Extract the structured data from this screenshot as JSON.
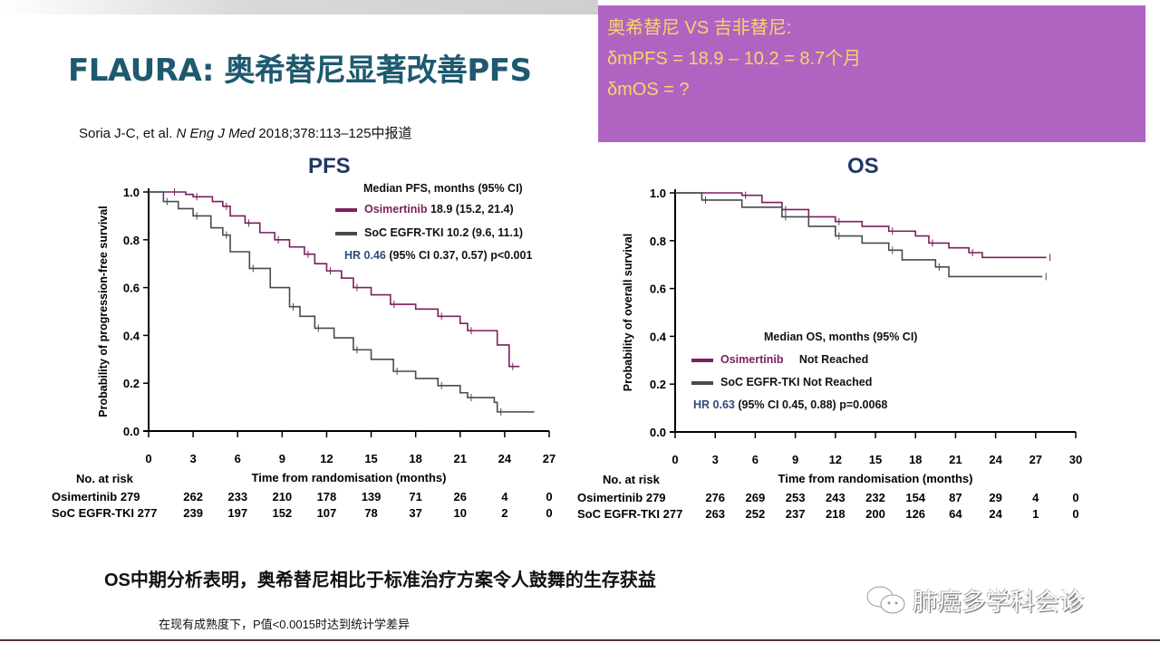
{
  "header": {
    "title": "FLAURA: 奥希替尼显著改善PFS",
    "citation_pre": "Soria J-C, et al. ",
    "citation_journal": "N Eng J Med",
    "citation_post": " 2018;378:113–125中报道"
  },
  "callout": {
    "line1": "奥希替尼 VS 吉非替尼:",
    "line2": "δmPFS = 18.9 – 10.2 = 8.7个月",
    "line3": "δmOS = ?"
  },
  "footer": {
    "statement": "OS中期分析表明，奥希替尼相比于标准治疗方案令人鼓舞的生存获益",
    "note": "在现有成熟度下，P值<0.0015时达到统计学差异",
    "logo_text": "肺癌多学科会诊"
  },
  "colors": {
    "osimertinib": "#7b1f5e",
    "soc": "#4a4a4a",
    "title": "#1d5a70",
    "callout_bg": "#b064c2"
  },
  "chart_data": [
    {
      "type": "line",
      "title": "PFS",
      "ylabel": "Probability of progression-free survival",
      "xlabel": "Time from randomisation (months)",
      "xlim": [
        0,
        27
      ],
      "ylim": [
        0,
        1
      ],
      "xticks": [
        "0",
        "3",
        "6",
        "9",
        "12",
        "15",
        "18",
        "21",
        "24",
        "27"
      ],
      "yticks": [
        "0.0",
        "0.2",
        "0.4",
        "0.6",
        "0.8",
        "1.0"
      ],
      "legend": {
        "heading": "Median PFS, months (95% CI)",
        "osi_name": "Osimertinib",
        "osi_value": " 18.9 (15.2, 21.4)",
        "soc_name": "SoC EGFR-TKI",
        "soc_value": " 10.2 (9.6, 11.1)",
        "hr_label": "HR 0.46",
        "hr_rest": " (95% CI 0.37, 0.57) p<0.001"
      },
      "series": [
        {
          "name": "Osimertinib",
          "points": [
            [
              0,
              1
            ],
            [
              1.5,
              1
            ],
            [
              2.5,
              0.99
            ],
            [
              3,
              0.98
            ],
            [
              4.3,
              0.96
            ],
            [
              5,
              0.94
            ],
            [
              5.5,
              0.9
            ],
            [
              6.5,
              0.87
            ],
            [
              7.5,
              0.83
            ],
            [
              8.5,
              0.8
            ],
            [
              9.5,
              0.77
            ],
            [
              10.5,
              0.74
            ],
            [
              11.2,
              0.7
            ],
            [
              12,
              0.67
            ],
            [
              13,
              0.64
            ],
            [
              13.8,
              0.6
            ],
            [
              15,
              0.57
            ],
            [
              16.3,
              0.53
            ],
            [
              18,
              0.51
            ],
            [
              19.5,
              0.48
            ],
            [
              21,
              0.45
            ],
            [
              21.5,
              0.42
            ],
            [
              23.5,
              0.36
            ],
            [
              24.3,
              0.27
            ],
            [
              25,
              0.27
            ]
          ]
        },
        {
          "name": "SoC EGFR-TKI",
          "points": [
            [
              0,
              1
            ],
            [
              1,
              0.96
            ],
            [
              2,
              0.93
            ],
            [
              3,
              0.9
            ],
            [
              4.2,
              0.85
            ],
            [
              5,
              0.82
            ],
            [
              5.5,
              0.75
            ],
            [
              6.8,
              0.68
            ],
            [
              8.2,
              0.6
            ],
            [
              9.5,
              0.52
            ],
            [
              10.2,
              0.48
            ],
            [
              11.2,
              0.43
            ],
            [
              12.5,
              0.39
            ],
            [
              13.8,
              0.34
            ],
            [
              15,
              0.3
            ],
            [
              16.5,
              0.25
            ],
            [
              18,
              0.22
            ],
            [
              19.5,
              0.19
            ],
            [
              21,
              0.16
            ],
            [
              21.5,
              0.14
            ],
            [
              23.3,
              0.12
            ],
            [
              23.5,
              0.08
            ],
            [
              26,
              0.08
            ]
          ]
        }
      ],
      "risk": {
        "heading": "No. at risk",
        "rows": [
          {
            "label": "Osimertinib 279",
            "values": [
              "262",
              "233",
              "210",
              "178",
              "139",
              "71",
              "26",
              "4",
              "0"
            ]
          },
          {
            "label": "SoC EGFR-TKI 277",
            "values": [
              "239",
              "197",
              "152",
              "107",
              "78",
              "37",
              "10",
              "2",
              "0"
            ]
          }
        ]
      }
    },
    {
      "type": "line",
      "title": "OS",
      "ylabel": "Probability of overall survival",
      "xlabel": "Time from randomisation (months)",
      "xlim": [
        0,
        30
      ],
      "ylim": [
        0,
        1
      ],
      "xticks": [
        "0",
        "3",
        "6",
        "9",
        "12",
        "15",
        "18",
        "21",
        "24",
        "27",
        "30"
      ],
      "yticks": [
        "0.0",
        "0.2",
        "0.4",
        "0.6",
        "0.8",
        "1.0"
      ],
      "legend": {
        "heading": "Median OS, months (95% CI)",
        "osi_name": "Osimertinib",
        "osi_value": "     Not Reached",
        "soc_name": "SoC EGFR-TKI",
        "soc_value": " Not Reached",
        "hr_label": "HR 0.63",
        "hr_rest": " (95% CI 0.45, 0.88) p=0.0068"
      },
      "series": [
        {
          "name": "Osimertinib",
          "points": [
            [
              0,
              1
            ],
            [
              5,
              0.99
            ],
            [
              6.5,
              0.96
            ],
            [
              8,
              0.93
            ],
            [
              10,
              0.9
            ],
            [
              12,
              0.88
            ],
            [
              14,
              0.86
            ],
            [
              16,
              0.84
            ],
            [
              18,
              0.82
            ],
            [
              19,
              0.79
            ],
            [
              20.5,
              0.77
            ],
            [
              22,
              0.75
            ],
            [
              23,
              0.73
            ],
            [
              27.8,
              0.73
            ]
          ]
        },
        {
          "name": "SoC EGFR-TKI",
          "points": [
            [
              0,
              1
            ],
            [
              2,
              0.97
            ],
            [
              5,
              0.94
            ],
            [
              8,
              0.9
            ],
            [
              10,
              0.86
            ],
            [
              12,
              0.82
            ],
            [
              14,
              0.79
            ],
            [
              16,
              0.76
            ],
            [
              17,
              0.72
            ],
            [
              19.5,
              0.69
            ],
            [
              20.5,
              0.65
            ],
            [
              27.5,
              0.65
            ]
          ]
        }
      ],
      "risk": {
        "heading": "No. at risk",
        "rows": [
          {
            "label": "Osimertinib 279",
            "values": [
              "276",
              "269",
              "253",
              "243",
              "232",
              "154",
              "87",
              "29",
              "4",
              "0"
            ]
          },
          {
            "label": "SoC EGFR-TKI 277",
            "values": [
              "263",
              "252",
              "237",
              "218",
              "200",
              "126",
              "64",
              "24",
              "1",
              "0"
            ]
          }
        ]
      }
    }
  ]
}
